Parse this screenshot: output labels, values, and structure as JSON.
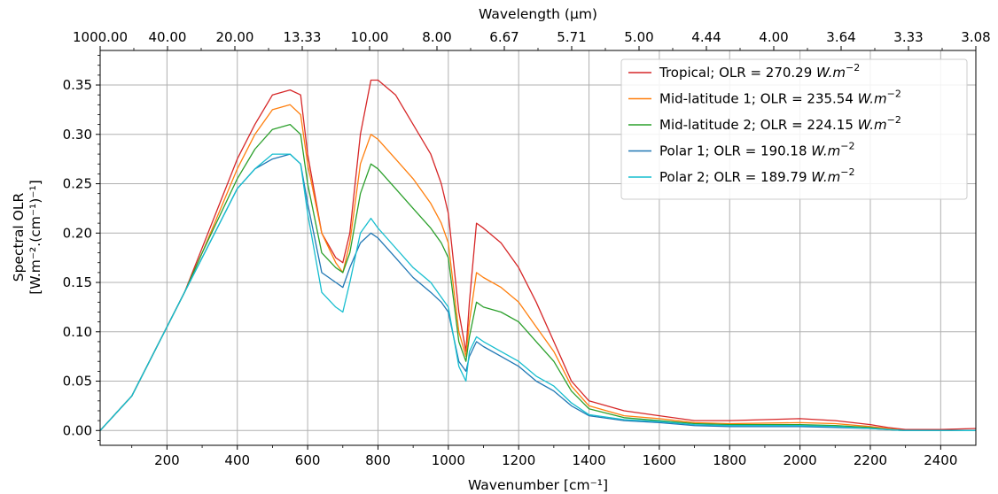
{
  "chart_data": {
    "type": "line",
    "xlabel": "Wavenumber [cm⁻¹]",
    "x2label": "Wavelength (μm)",
    "ylabel_line1": "Spectral OLR",
    "ylabel_line2": "[W.m⁻².(cm⁻¹)⁻¹]",
    "xlim": [
      10,
      2500
    ],
    "ylim": [
      -0.015,
      0.385
    ],
    "x_ticks": [
      200,
      400,
      600,
      800,
      1000,
      1200,
      1400,
      1600,
      1800,
      2000,
      2200,
      2400
    ],
    "x_tick_labels": [
      "200",
      "400",
      "600",
      "800",
      "1000",
      "1200",
      "1400",
      "1600",
      "1800",
      "2000",
      "2200",
      "2400"
    ],
    "y_ticks": [
      0.0,
      0.05,
      0.1,
      0.15,
      0.2,
      0.25,
      0.3,
      0.35
    ],
    "y_tick_labels": [
      "0.00",
      "0.05",
      "0.10",
      "0.15",
      "0.20",
      "0.25",
      "0.30",
      "0.35"
    ],
    "top_ticks": [
      10,
      250,
      500,
      750,
      1000,
      1250,
      1500,
      1750,
      2000,
      2250,
      2500,
      2750,
      3000,
      3250
    ],
    "top_tick_labels": [
      "1000.00",
      "40.00",
      "20.00",
      "13.33",
      "10.00",
      "8.00",
      "6.67",
      "5.71",
      "5.00",
      "4.44",
      "4.00",
      "3.64",
      "3.33",
      "3.08"
    ],
    "grid": true,
    "legend_position": "top-right",
    "series": [
      {
        "name": "Tropical; OLR = 270.29 W.m⁻²",
        "legend_prefix": "Tropical; OLR = 270.29 ",
        "color": "#d62728",
        "x": [
          10,
          100,
          200,
          250,
          300,
          400,
          450,
          500,
          550,
          580,
          600,
          640,
          680,
          700,
          720,
          750,
          780,
          800,
          850,
          900,
          950,
          980,
          1000,
          1030,
          1050,
          1060,
          1080,
          1100,
          1150,
          1200,
          1250,
          1300,
          1350,
          1400,
          1500,
          1600,
          1700,
          1800,
          2000,
          2100,
          2200,
          2250,
          2300,
          2400,
          2500
        ],
        "y": [
          0.0,
          0.035,
          0.105,
          0.14,
          0.185,
          0.275,
          0.31,
          0.34,
          0.345,
          0.34,
          0.28,
          0.2,
          0.175,
          0.17,
          0.2,
          0.3,
          0.355,
          0.355,
          0.34,
          0.31,
          0.28,
          0.25,
          0.22,
          0.12,
          0.08,
          0.13,
          0.21,
          0.205,
          0.19,
          0.165,
          0.13,
          0.09,
          0.05,
          0.03,
          0.02,
          0.015,
          0.01,
          0.01,
          0.012,
          0.01,
          0.006,
          0.003,
          0.001,
          0.001,
          0.002
        ]
      },
      {
        "name": "Mid-latitude 1; OLR = 235.54 W.m⁻²",
        "legend_prefix": "Mid-latitude 1; OLR = 235.54 ",
        "color": "#ff7f0e",
        "x": [
          10,
          100,
          200,
          250,
          300,
          400,
          450,
          500,
          550,
          580,
          600,
          640,
          680,
          700,
          720,
          750,
          780,
          800,
          850,
          900,
          950,
          980,
          1000,
          1030,
          1050,
          1060,
          1080,
          1100,
          1150,
          1200,
          1250,
          1300,
          1350,
          1400,
          1500,
          1600,
          1700,
          1800,
          2000,
          2100,
          2200,
          2250,
          2300,
          2400,
          2500
        ],
        "y": [
          0.0,
          0.035,
          0.105,
          0.14,
          0.18,
          0.265,
          0.3,
          0.325,
          0.33,
          0.32,
          0.27,
          0.2,
          0.17,
          0.16,
          0.19,
          0.27,
          0.3,
          0.295,
          0.275,
          0.255,
          0.23,
          0.21,
          0.19,
          0.1,
          0.075,
          0.11,
          0.16,
          0.155,
          0.145,
          0.13,
          0.105,
          0.08,
          0.045,
          0.025,
          0.015,
          0.012,
          0.008,
          0.007,
          0.008,
          0.007,
          0.004,
          0.002,
          0.0,
          0.0,
          0.0
        ]
      },
      {
        "name": "Mid-latitude 2; OLR = 224.15 W.m⁻²",
        "legend_prefix": "Mid-latitude 2; OLR = 224.15 ",
        "color": "#2ca02c",
        "x": [
          10,
          100,
          200,
          250,
          300,
          400,
          450,
          500,
          550,
          580,
          600,
          640,
          680,
          700,
          720,
          750,
          780,
          800,
          850,
          900,
          950,
          980,
          1000,
          1030,
          1050,
          1060,
          1080,
          1100,
          1150,
          1200,
          1250,
          1300,
          1350,
          1400,
          1500,
          1600,
          1700,
          1800,
          2000,
          2100,
          2200,
          2250,
          2300,
          2400,
          2500
        ],
        "y": [
          0.0,
          0.035,
          0.105,
          0.14,
          0.18,
          0.255,
          0.285,
          0.305,
          0.31,
          0.3,
          0.25,
          0.18,
          0.165,
          0.16,
          0.18,
          0.24,
          0.27,
          0.265,
          0.245,
          0.225,
          0.205,
          0.19,
          0.175,
          0.09,
          0.07,
          0.095,
          0.13,
          0.125,
          0.12,
          0.11,
          0.09,
          0.07,
          0.04,
          0.022,
          0.013,
          0.01,
          0.007,
          0.006,
          0.006,
          0.005,
          0.003,
          0.001,
          0.0,
          0.0,
          0.0
        ]
      },
      {
        "name": "Polar 1; OLR = 190.18 W.m⁻²",
        "legend_prefix": "Polar 1; OLR = 190.18 ",
        "color": "#1f77b4",
        "x": [
          10,
          100,
          200,
          250,
          300,
          400,
          450,
          500,
          550,
          580,
          600,
          640,
          680,
          700,
          720,
          750,
          780,
          800,
          850,
          900,
          950,
          980,
          1000,
          1030,
          1050,
          1060,
          1080,
          1100,
          1150,
          1200,
          1250,
          1300,
          1350,
          1400,
          1500,
          1600,
          1700,
          1800,
          2000,
          2100,
          2200,
          2250,
          2300,
          2400,
          2500
        ],
        "y": [
          0.0,
          0.035,
          0.105,
          0.14,
          0.175,
          0.245,
          0.265,
          0.275,
          0.28,
          0.27,
          0.23,
          0.16,
          0.15,
          0.145,
          0.165,
          0.19,
          0.2,
          0.195,
          0.175,
          0.155,
          0.14,
          0.13,
          0.12,
          0.07,
          0.06,
          0.075,
          0.09,
          0.085,
          0.075,
          0.065,
          0.05,
          0.04,
          0.025,
          0.015,
          0.01,
          0.008,
          0.005,
          0.004,
          0.004,
          0.003,
          0.002,
          0.001,
          0.0,
          0.0,
          0.0
        ]
      },
      {
        "name": "Polar 2; OLR = 189.79 W.m⁻²",
        "legend_prefix": "Polar 2; OLR = 189.79 ",
        "color": "#17becf",
        "x": [
          10,
          100,
          200,
          250,
          300,
          400,
          450,
          500,
          550,
          580,
          600,
          640,
          680,
          700,
          720,
          750,
          780,
          800,
          850,
          900,
          950,
          980,
          1000,
          1030,
          1050,
          1060,
          1080,
          1100,
          1150,
          1200,
          1250,
          1300,
          1350,
          1400,
          1500,
          1600,
          1700,
          1800,
          2000,
          2100,
          2200,
          2250,
          2300,
          2400,
          2500
        ],
        "y": [
          0.0,
          0.035,
          0.105,
          0.14,
          0.175,
          0.245,
          0.265,
          0.28,
          0.28,
          0.27,
          0.22,
          0.14,
          0.125,
          0.12,
          0.15,
          0.2,
          0.215,
          0.205,
          0.185,
          0.165,
          0.15,
          0.135,
          0.125,
          0.065,
          0.05,
          0.08,
          0.095,
          0.09,
          0.08,
          0.07,
          0.055,
          0.045,
          0.028,
          0.016,
          0.011,
          0.009,
          0.006,
          0.005,
          0.005,
          0.004,
          0.002,
          0.001,
          0.0,
          0.0,
          0.0
        ]
      }
    ]
  }
}
